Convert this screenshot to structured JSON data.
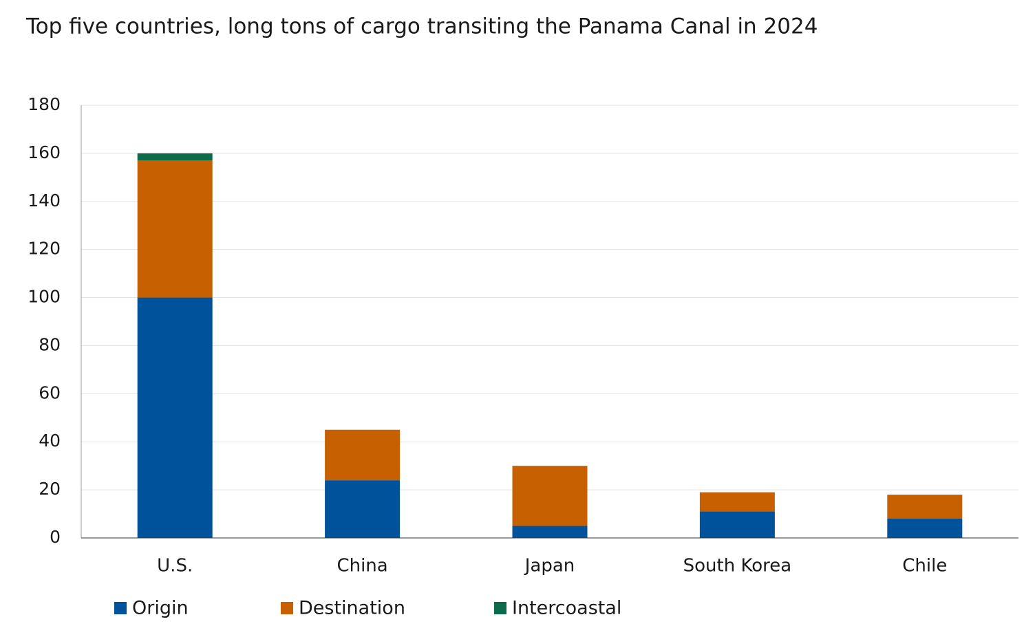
{
  "chart_data": {
    "type": "stacked_bar",
    "title": "Top five countries, long tons of cargo transiting the Panama Canal in 2024",
    "categories": [
      "U.S.",
      "China",
      "Japan",
      "South Korea",
      "Chile"
    ],
    "series": [
      {
        "name": "Origin",
        "color": "#00529b",
        "values": [
          100,
          24,
          5,
          11,
          8
        ]
      },
      {
        "name": "Destination",
        "color": "#c66000",
        "values": [
          57,
          21,
          25,
          8,
          10
        ]
      },
      {
        "name": "Intercoastal",
        "color": "#0c6b4b",
        "values": [
          3,
          0,
          0,
          0,
          0
        ]
      }
    ],
    "ylim": [
      0,
      180
    ],
    "yticks": [
      0,
      20,
      40,
      60,
      80,
      100,
      120,
      140,
      160,
      180
    ],
    "grid": true,
    "legend": "bottom"
  }
}
